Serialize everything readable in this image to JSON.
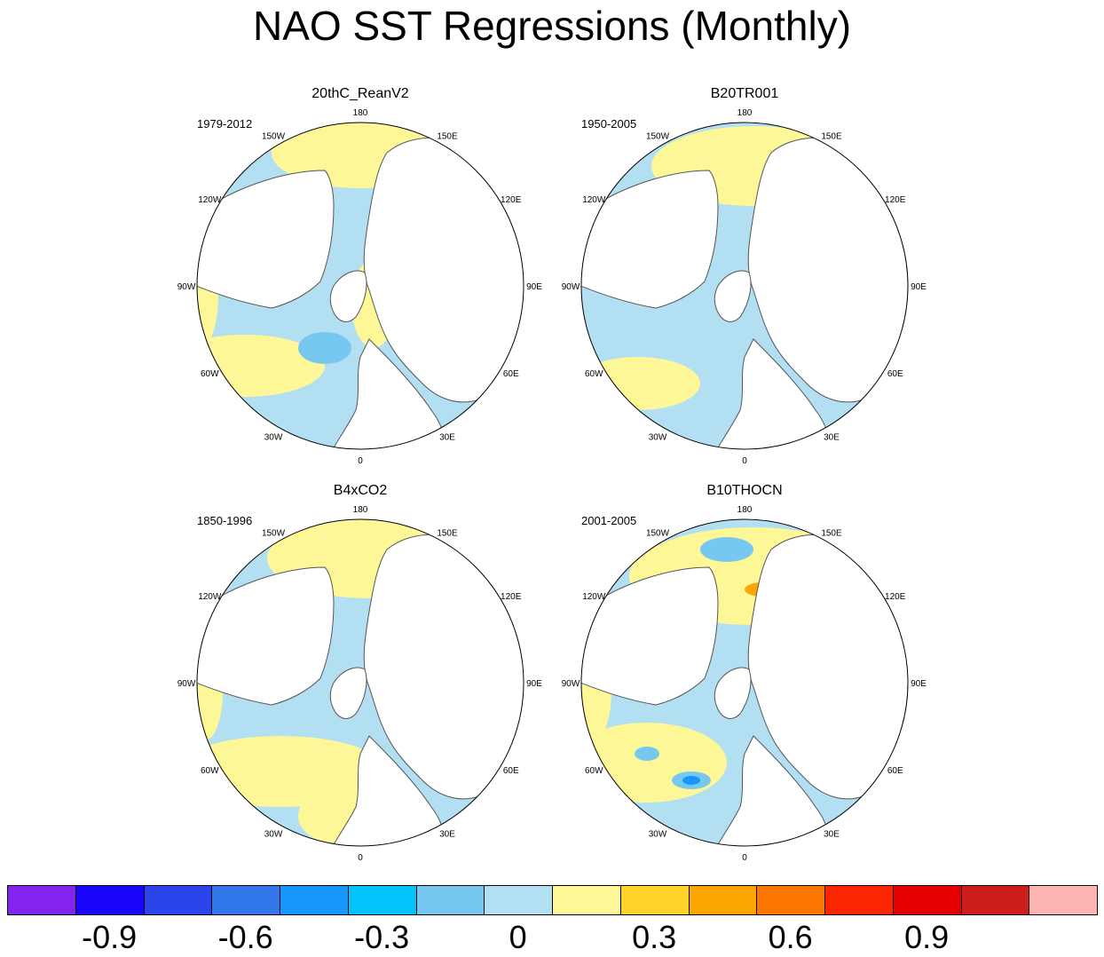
{
  "title": "NAO SST Regressions (Monthly)",
  "colors": {
    "land": "#ffffff",
    "coast": "#555555",
    "ocean_neg": "#b3dff3",
    "ocean_pos": "#fdf797",
    "ocean_neg2": "#77c8f0",
    "ocean_pos2": "#fed32a",
    "ocean_pos3": "#fda603",
    "ocean_pos4": "#fc2700",
    "ocean_neg3": "#1996fa"
  },
  "lon_labels": [
    "180",
    "150E",
    "120E",
    "90E",
    "60E",
    "30E",
    "0",
    "30W",
    "60W",
    "90W",
    "120W",
    "150W"
  ],
  "panels": [
    {
      "id": "p1",
      "name": "20thC_ReanV2",
      "years": "1979-2012"
    },
    {
      "id": "p2",
      "name": "B20TR001",
      "years": "1950-2005"
    },
    {
      "id": "p3",
      "name": "B4xCO2",
      "years": "1850-1996"
    },
    {
      "id": "p4",
      "name": "B10THOCN",
      "years": "2001-2005"
    }
  ],
  "colorbar": {
    "colors": [
      "#8323f0",
      "#1a05fb",
      "#2c44eb",
      "#3378eb",
      "#1996fa",
      "#03c3fd",
      "#77c8f0",
      "#b3dff3",
      "#fdf797",
      "#fed32a",
      "#fda603",
      "#fc7702",
      "#fc2700",
      "#e60001",
      "#cd1e1c",
      "#feb4b3"
    ],
    "labels": [
      "-0.9",
      "-0.6",
      "-0.3",
      "0",
      "0.3",
      "0.6",
      "0.9"
    ],
    "label_boundaries": [
      1,
      3,
      5,
      7,
      9,
      11,
      13
    ]
  }
}
